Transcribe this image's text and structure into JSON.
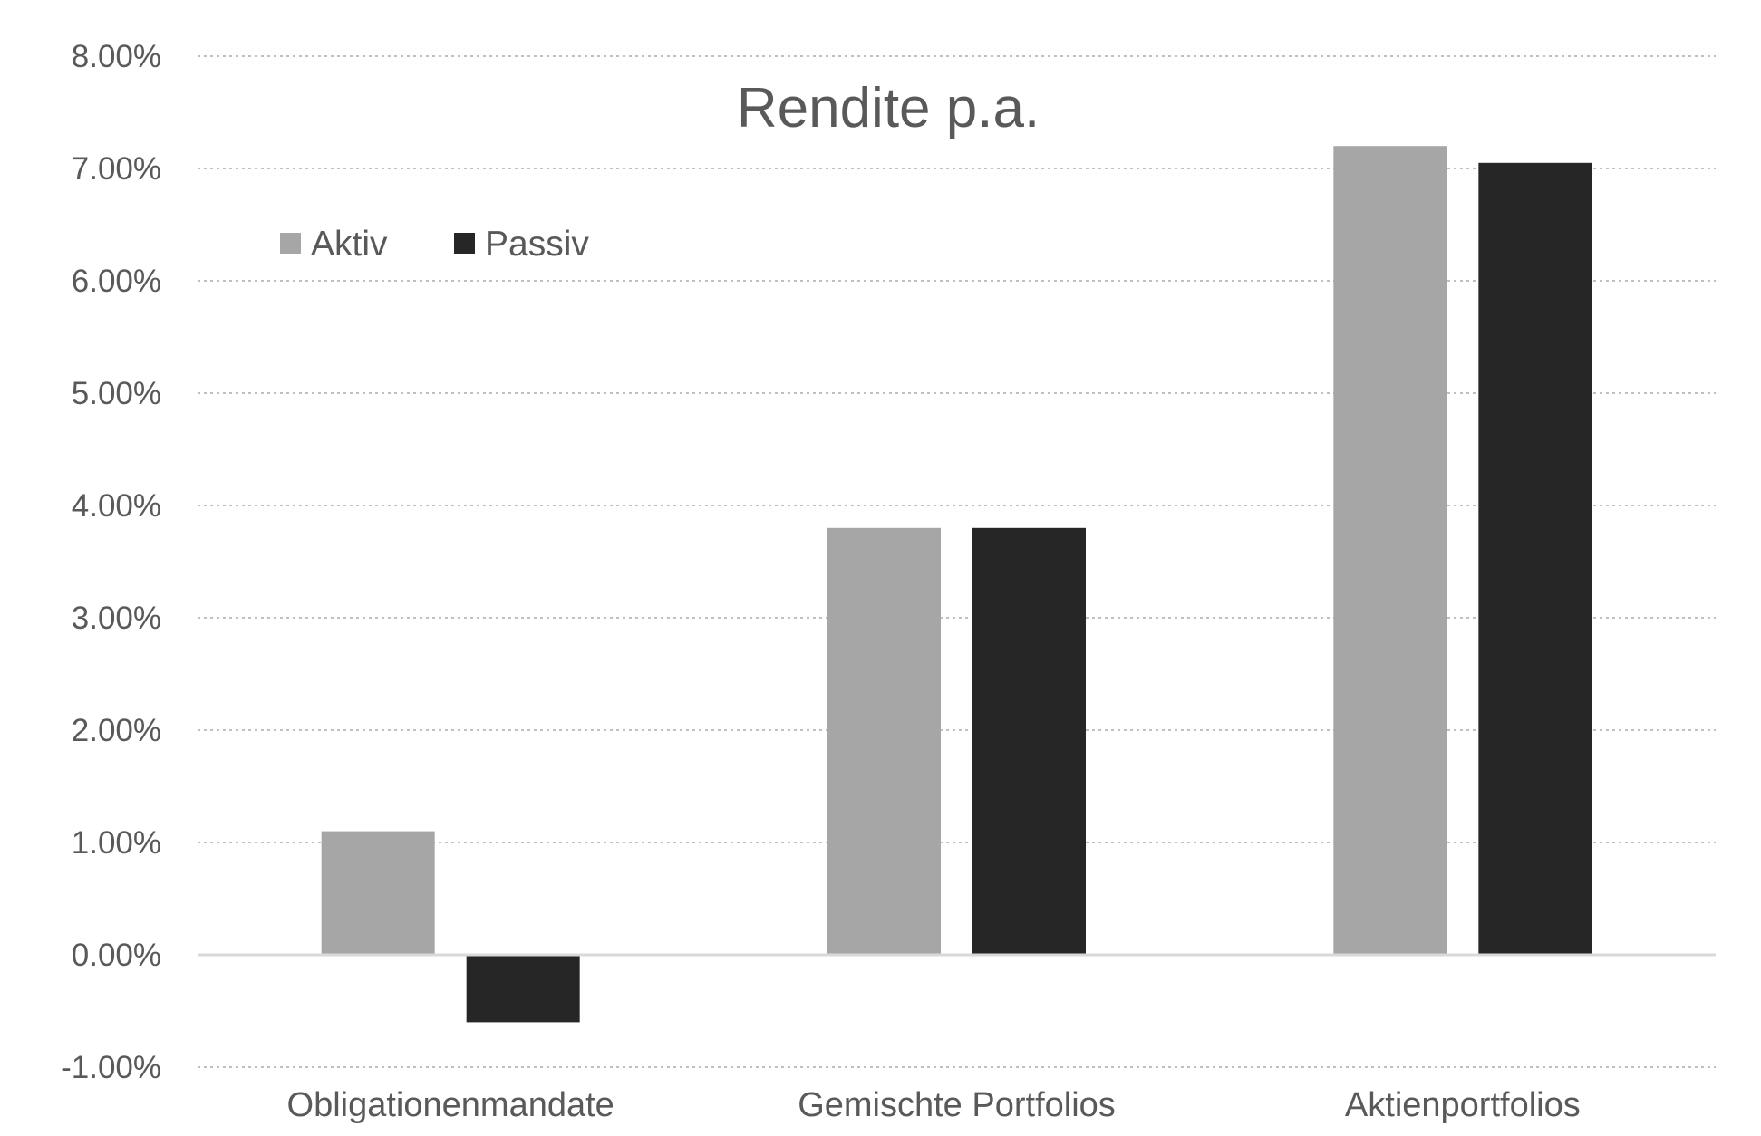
{
  "chart_data": {
    "type": "bar",
    "title": "Rendite p.a.",
    "xlabel": "",
    "ylabel": "",
    "categories": [
      "Obligationenmandate",
      "Gemischte Portfolios",
      "Aktienportfolios"
    ],
    "series": [
      {
        "name": "Aktiv",
        "values": [
          1.1,
          3.8,
          7.2
        ],
        "color": "#a6a6a6"
      },
      {
        "name": "Passiv",
        "values": [
          -0.6,
          3.8,
          7.05
        ],
        "color": "#262626"
      }
    ],
    "ylim": [
      -1,
      8
    ],
    "yticks": [
      "-1.00%",
      "0.00%",
      "1.00%",
      "2.00%",
      "3.00%",
      "4.00%",
      "5.00%",
      "6.00%",
      "7.00%",
      "8.00%"
    ],
    "grid": true,
    "legend_position": "top-left",
    "colors": {
      "grid": "#bfbfbf",
      "zero_line": "#d9d9d9",
      "text": "#595959"
    }
  }
}
